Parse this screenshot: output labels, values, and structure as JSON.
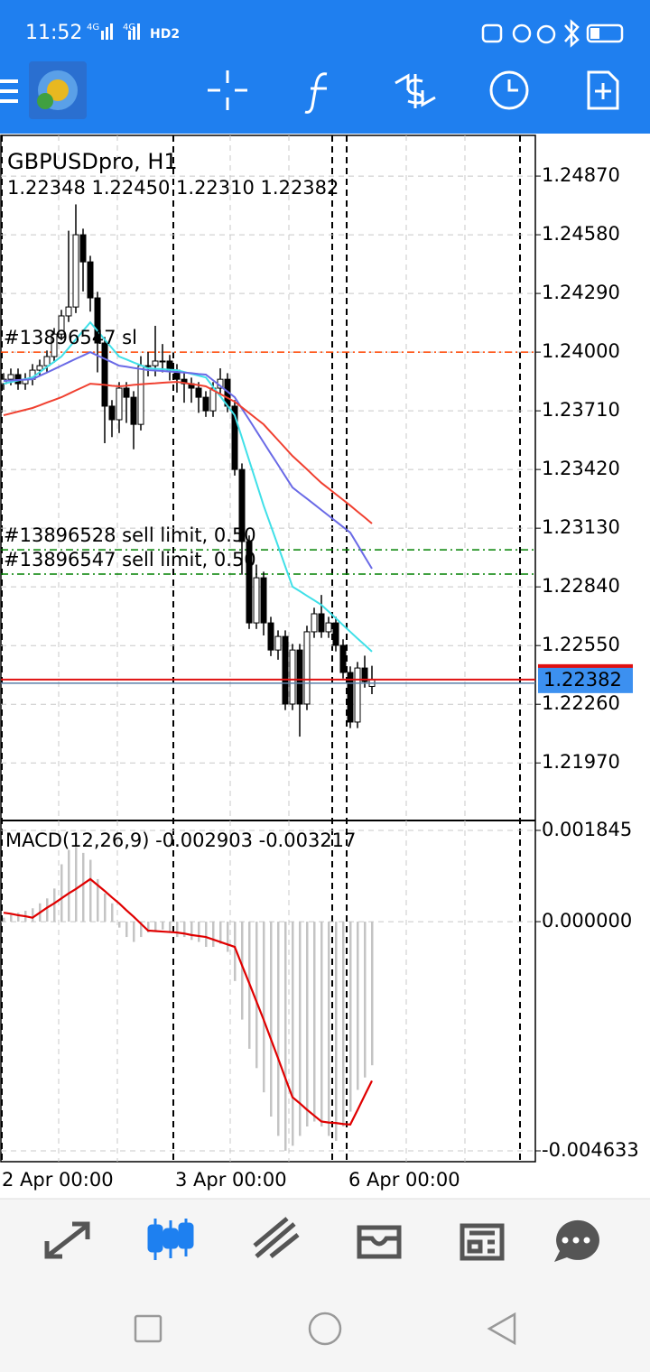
{
  "status_bar": {
    "time": "11:52",
    "network": [
      "4G",
      "4G"
    ],
    "hd": "HD2"
  },
  "chart_data": [
    {
      "type": "candlestick",
      "title": "GBPUSDpro, H1",
      "subtitle": "1.22348 1.22450 1.22310 1.22382",
      "categories": [
        "2 Apr 00:00",
        null,
        null,
        null,
        null,
        null,
        null,
        null,
        null,
        null,
        null,
        null,
        null,
        null,
        null,
        null,
        null,
        null,
        null,
        null,
        null,
        null,
        null,
        null,
        "3 Apr 00:00",
        null,
        null,
        null,
        null,
        null,
        null,
        null,
        null,
        null,
        null,
        null,
        null,
        null,
        null,
        null,
        null,
        null,
        null,
        null,
        null,
        null,
        null,
        null,
        "6 Apr 00:00",
        null,
        null,
        null
      ],
      "open": [
        1.23844,
        1.23866,
        1.23889,
        1.23844,
        1.23866,
        1.23911,
        1.23933,
        1.23978,
        1.24089,
        1.24179,
        1.24223,
        1.2458,
        1.24446,
        1.24268,
        1.24045,
        1.23733,
        1.23666,
        1.23822,
        1.23777,
        1.23643,
        1.23933,
        1.23933,
        1.23956,
        1.23956,
        1.23911,
        1.23866,
        1.23844,
        1.23822,
        1.23777,
        1.2371,
        1.23822,
        1.23866,
        1.23733,
        1.2342,
        1.23064,
        1.22662,
        1.22885,
        1.22662,
        1.22528,
        1.22595,
        1.22261,
        1.22528,
        1.22261,
        1.22618,
        1.22707,
        1.22618,
        1.22662,
        1.22551,
        1.22417,
        1.22172,
        1.22439,
        1.22348
      ],
      "high": [
        1.23896,
        1.23919,
        1.23919,
        1.23896,
        1.23941,
        1.23963,
        1.24008,
        1.24119,
        1.24209,
        1.246,
        1.2473,
        1.2461,
        1.24476,
        1.24298,
        1.24075,
        1.23763,
        1.23852,
        1.23852,
        1.23807,
        1.2398,
        1.24,
        1.2413,
        1.2404,
        1.23986,
        1.23941,
        1.23896,
        1.23874,
        1.23852,
        1.23807,
        1.23852,
        1.2392,
        1.23896,
        1.23763,
        1.2345,
        1.23094,
        1.2295,
        1.22915,
        1.22692,
        1.22625,
        1.22625,
        1.22558,
        1.22558,
        1.22648,
        1.22737,
        1.228,
        1.22692,
        1.22692,
        1.22581,
        1.22447,
        1.22469,
        1.225,
        1.2245
      ],
      "low": [
        1.23814,
        1.23836,
        1.23814,
        1.23814,
        1.23836,
        1.23881,
        1.23903,
        1.23948,
        1.24059,
        1.24149,
        1.24193,
        1.243,
        1.242,
        1.239,
        1.2355,
        1.2358,
        1.236,
        1.2365,
        1.2352,
        1.23613,
        1.2388,
        1.2388,
        1.239,
        1.2386,
        1.238,
        1.2375,
        1.2375,
        1.237,
        1.2368,
        1.2368,
        1.23792,
        1.23703,
        1.2339,
        1.229,
        1.22632,
        1.22632,
        1.226,
        1.22498,
        1.2248,
        1.22231,
        1.22231,
        1.221,
        1.22231,
        1.22588,
        1.22588,
        1.22588,
        1.22521,
        1.22387,
        1.22142,
        1.22142,
        1.22342,
        1.2231
      ],
      "close": [
        1.23866,
        1.23889,
        1.23844,
        1.23866,
        1.23911,
        1.23933,
        1.23978,
        1.24089,
        1.24179,
        1.24223,
        1.2458,
        1.24446,
        1.24268,
        1.24045,
        1.23733,
        1.23666,
        1.23822,
        1.23777,
        1.23643,
        1.23933,
        1.23933,
        1.23956,
        1.23956,
        1.23911,
        1.23866,
        1.23844,
        1.23822,
        1.23777,
        1.2371,
        1.23822,
        1.23866,
        1.23733,
        1.2342,
        1.23064,
        1.22662,
        1.22885,
        1.22662,
        1.22528,
        1.22595,
        1.22261,
        1.22528,
        1.22261,
        1.22618,
        1.22707,
        1.22618,
        1.22662,
        1.22551,
        1.22417,
        1.22172,
        1.22439,
        1.22372,
        1.22382
      ],
      "up_color": "#ffffff",
      "down_color": "#000000",
      "series": [
        {
          "color": "#40e0e8",
          "values": [
            1.23844,
            1.23852,
            1.2386,
            1.23867,
            1.23875,
            1.23901,
            1.23927,
            1.23952,
            1.23978,
            1.2402,
            1.24063,
            1.24105,
            1.24147,
            1.24105,
            1.24062,
            1.2402,
            1.23978,
            1.23964,
            1.23949,
            1.23935,
            1.2392,
            1.23918,
            1.23916,
            1.23913,
            1.23911,
            1.23902,
            1.23893,
            1.23884,
            1.23875,
            1.23828,
            1.23782,
            1.23735,
            1.23688,
            1.23577,
            1.23465,
            1.23354,
            1.23242,
            1.23142,
            1.23042,
            1.22941,
            1.22841,
            1.22819,
            1.22796,
            1.22774,
            1.22751,
            1.22718,
            1.22685,
            1.22651,
            1.22618,
            1.22585,
            1.22553,
            1.2252
          ]
        },
        {
          "color": "#6a6ae6",
          "values": [
            1.23858,
            1.2386,
            1.23862,
            1.23864,
            1.23866,
            1.23883,
            1.23899,
            1.23916,
            1.23933,
            1.2395,
            1.23967,
            1.23983,
            1.24,
            1.23983,
            1.23967,
            1.2395,
            1.23933,
            1.23928,
            1.23922,
            1.23917,
            1.23911,
            1.23909,
            1.23907,
            1.23904,
            1.23902,
            1.23899,
            1.23896,
            1.23892,
            1.23889,
            1.23861,
            1.23833,
            1.23805,
            1.23777,
            1.23721,
            1.23666,
            1.2361,
            1.23554,
            1.23498,
            1.23443,
            1.23387,
            1.23331,
            1.23303,
            1.23276,
            1.23248,
            1.2322,
            1.23192,
            1.23164,
            1.23136,
            1.23108,
            1.23049,
            1.22989,
            1.2293
          ]
        },
        {
          "color": "#f04030",
          "values": [
            1.23688,
            1.23697,
            1.23706,
            1.23715,
            1.23724,
            1.23737,
            1.23751,
            1.23764,
            1.23777,
            1.23794,
            1.23811,
            1.23827,
            1.23844,
            1.23841,
            1.23838,
            1.23834,
            1.23831,
            1.23834,
            1.23838,
            1.23841,
            1.23844,
            1.23846,
            1.23849,
            1.23851,
            1.23853,
            1.23848,
            1.23842,
            1.23837,
            1.23831,
            1.23812,
            1.23793,
            1.23774,
            1.23755,
            1.23727,
            1.23699,
            1.23671,
            1.23643,
            1.23604,
            1.23565,
            1.23526,
            1.23487,
            1.23454,
            1.23421,
            1.23387,
            1.23354,
            1.23326,
            1.23298,
            1.2327,
            1.23242,
            1.23212,
            1.23183,
            1.23153
          ]
        }
      ],
      "orders": [
        {
          "label": "#13896547 sl",
          "price": 1.24,
          "color": "#ff4500"
        },
        {
          "label": "#13896528 sell limit, 0.50",
          "price": 1.23023,
          "color": "#008000"
        },
        {
          "label": "#13896547 sell limit, 0.50",
          "price": 1.22903,
          "color": "#008000"
        }
      ],
      "current_price": 1.22382,
      "current_color": "#e01010",
      "ylim": [
        1.2169,
        1.25071
      ],
      "yticks": [
        {
          "value": 1.2487,
          "label": "1.24870"
        },
        {
          "value": 1.2458,
          "label": "1.24580"
        },
        {
          "value": 1.2429,
          "label": "1.24290"
        },
        {
          "value": 1.24,
          "label": "1.24000"
        },
        {
          "value": 1.2371,
          "label": "1.23710"
        },
        {
          "value": 1.2342,
          "label": "1.23420"
        },
        {
          "value": 1.2313,
          "label": "1.23130"
        },
        {
          "value": 1.2284,
          "label": "1.22840"
        },
        {
          "value": 1.2255,
          "label": "1.22550"
        },
        {
          "value": 1.2226,
          "label": "1.22260"
        },
        {
          "value": 1.2197,
          "label": "1.21970"
        }
      ],
      "grid": true
    },
    {
      "type": "macd",
      "title": "MACD(12,26,9) -0.002903 -0.003217",
      "histogram": {
        "color": "#c4c4c4",
        "values": [
          8e-05,
          0.00014,
          0.00018,
          0.00022,
          0.00027,
          0.00037,
          0.00047,
          0.00067,
          0.00116,
          0.00145,
          0.00151,
          0.00139,
          0.00125,
          0.00086,
          0.00057,
          0.00037,
          -0.00012,
          -0.00031,
          -0.00041,
          -0.00031,
          -0.00022,
          -0.00018,
          -0.00016,
          -0.00022,
          -0.00031,
          -0.00031,
          -0.00037,
          -0.00041,
          -0.00051,
          -0.00051,
          -0.00045,
          -0.00061,
          -0.0012,
          -0.00198,
          -0.00257,
          -0.00296,
          -0.00345,
          -0.00394,
          -0.00433,
          -0.00463,
          -0.00453,
          -0.00433,
          -0.00414,
          -0.00404,
          -0.00414,
          -0.00433,
          -0.00443,
          -0.00414,
          -0.00384,
          -0.0034,
          -0.00315,
          -0.002903
        ]
      },
      "signal": {
        "color": "#e00000",
        "values": [
          0.00018,
          0.00016,
          0.00013,
          0.00011,
          8e-05,
          0.00018,
          0.00028,
          0.00037,
          0.00047,
          0.00057,
          0.00066,
          0.00076,
          0.00086,
          0.00074,
          0.00062,
          0.00049,
          0.00037,
          0.00023,
          0.0001,
          -4e-05,
          -0.00018,
          -0.00019,
          -0.0002,
          -0.00021,
          -0.00022,
          -0.00024,
          -0.00027,
          -0.00029,
          -0.00031,
          -0.00036,
          -0.00041,
          -0.00046,
          -0.00051,
          -0.00088,
          -0.00124,
          -0.00161,
          -0.00198,
          -0.00237,
          -0.00276,
          -0.00316,
          -0.00355,
          -0.00367,
          -0.0038,
          -0.00392,
          -0.00404,
          -0.00406,
          -0.00407,
          -0.00409,
          -0.0041,
          -0.00381,
          -0.00351,
          -0.003217
        ]
      },
      "ylim": [
        -0.00487,
        0.00199
      ],
      "yticks": [
        0.001845,
        {
          "value": 0,
          "label": "0.000000"
        },
        -0.004633
      ],
      "grid": true
    }
  ]
}
